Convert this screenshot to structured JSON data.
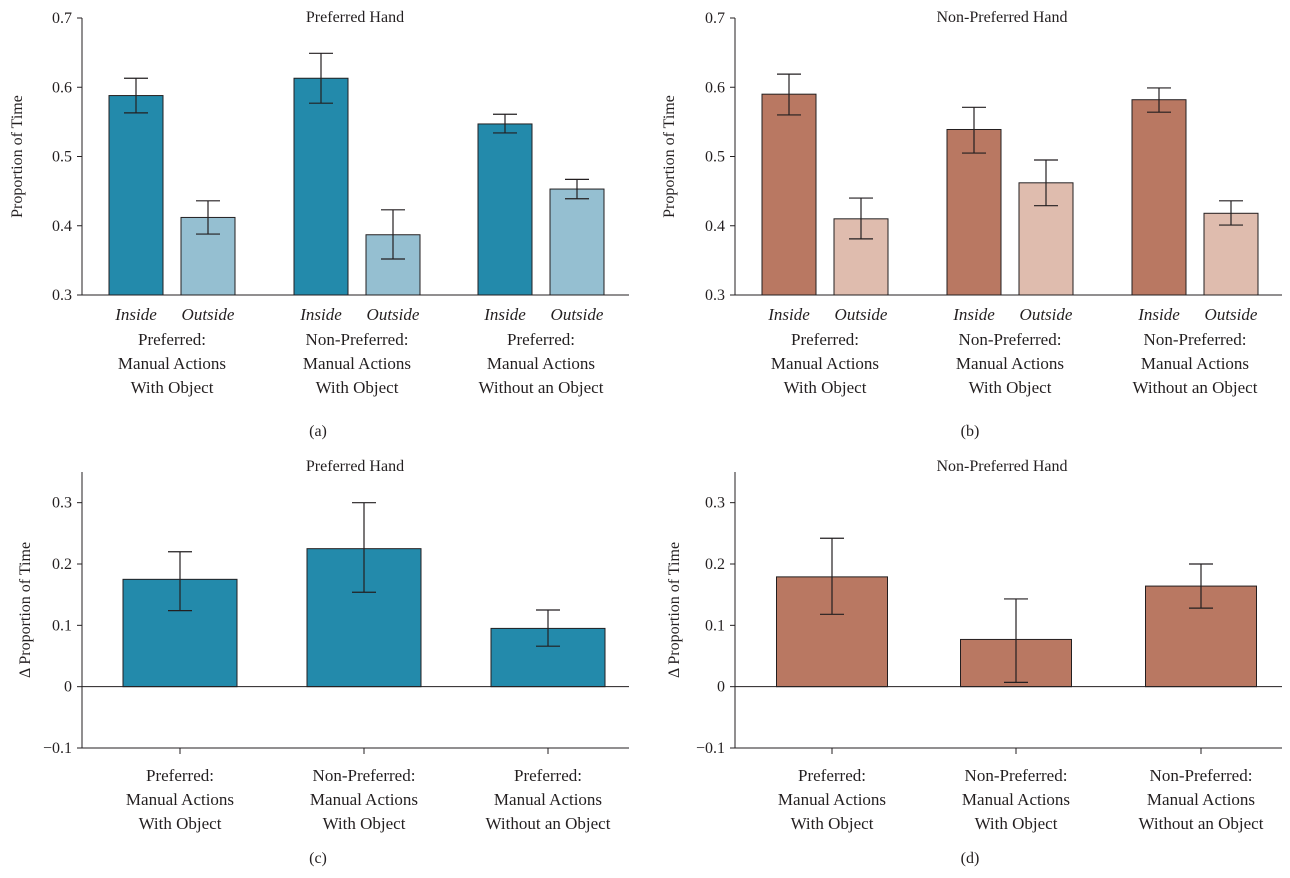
{
  "chart_data": [
    {
      "id": "a",
      "type": "bar",
      "panel_label": "(a)",
      "title": "Preferred Hand",
      "ylabel": "Proportion of Time",
      "ylim": [
        0.3,
        0.7
      ],
      "yticks": [
        0.3,
        0.4,
        0.5,
        0.6,
        0.7
      ],
      "ytick_labels": [
        "0.3",
        "0.4",
        "0.5",
        "0.6",
        "0.7"
      ],
      "bar_labels": [
        "Inside",
        "Outside"
      ],
      "colors": {
        "Inside": "#238aab",
        "Outside": "#95bfd1"
      },
      "groups": [
        {
          "label_lines": [
            "Preferred:",
            "Manual Actions",
            "With Object"
          ],
          "bars": [
            {
              "label": "Inside",
              "value": 0.588,
              "err_low": 0.563,
              "err_high": 0.613
            },
            {
              "label": "Outside",
              "value": 0.412,
              "err_low": 0.388,
              "err_high": 0.436
            }
          ]
        },
        {
          "label_lines": [
            "Non-Preferred:",
            "Manual Actions",
            "With Object"
          ],
          "bars": [
            {
              "label": "Inside",
              "value": 0.613,
              "err_low": 0.577,
              "err_high": 0.649
            },
            {
              "label": "Outside",
              "value": 0.387,
              "err_low": 0.352,
              "err_high": 0.423
            }
          ]
        },
        {
          "label_lines": [
            "Preferred:",
            "Manual Actions",
            "Without an Object"
          ],
          "bars": [
            {
              "label": "Inside",
              "value": 0.547,
              "err_low": 0.534,
              "err_high": 0.561
            },
            {
              "label": "Outside",
              "value": 0.453,
              "err_low": 0.439,
              "err_high": 0.467
            }
          ]
        }
      ]
    },
    {
      "id": "b",
      "type": "bar",
      "panel_label": "(b)",
      "title": "Non-Preferred Hand",
      "ylabel": "Proportion of Time",
      "ylim": [
        0.3,
        0.7
      ],
      "yticks": [
        0.3,
        0.4,
        0.5,
        0.6,
        0.7
      ],
      "ytick_labels": [
        "0.3",
        "0.4",
        "0.5",
        "0.6",
        "0.7"
      ],
      "bar_labels": [
        "Inside",
        "Outside"
      ],
      "colors": {
        "Inside": "#b97862",
        "Outside": "#dfbcae"
      },
      "groups": [
        {
          "label_lines": [
            "Preferred:",
            "Manual Actions",
            "With Object"
          ],
          "bars": [
            {
              "label": "Inside",
              "value": 0.59,
              "err_low": 0.56,
              "err_high": 0.619
            },
            {
              "label": "Outside",
              "value": 0.41,
              "err_low": 0.381,
              "err_high": 0.44
            }
          ]
        },
        {
          "label_lines": [
            "Non-Preferred:",
            "Manual Actions",
            "With Object"
          ],
          "bars": [
            {
              "label": "Inside",
              "value": 0.539,
              "err_low": 0.505,
              "err_high": 0.571
            },
            {
              "label": "Outside",
              "value": 0.462,
              "err_low": 0.429,
              "err_high": 0.495
            }
          ]
        },
        {
          "label_lines": [
            "Non-Preferred:",
            "Manual Actions",
            "Without an Object"
          ],
          "bars": [
            {
              "label": "Inside",
              "value": 0.582,
              "err_low": 0.564,
              "err_high": 0.599
            },
            {
              "label": "Outside",
              "value": 0.418,
              "err_low": 0.401,
              "err_high": 0.436
            }
          ]
        }
      ]
    },
    {
      "id": "c",
      "type": "bar",
      "panel_label": "(c)",
      "title": "Preferred Hand",
      "ylabel": "Δ Proportion of Time",
      "ylim": [
        -0.1,
        0.35
      ],
      "yticks": [
        -0.1,
        0,
        0.1,
        0.2,
        0.3
      ],
      "ytick_labels": [
        "−0.1",
        "0",
        "0.1",
        "0.2",
        "0.3"
      ],
      "zero_line": true,
      "colors": {
        "bar": "#238aab"
      },
      "categories_lines": [
        [
          "Preferred:",
          "Manual Actions",
          "With Object"
        ],
        [
          "Non-Preferred:",
          "Manual Actions",
          "With Object"
        ],
        [
          "Preferred:",
          "Manual Actions",
          "Without an Object"
        ]
      ],
      "values": [
        0.175,
        0.225,
        0.095
      ],
      "err_low": [
        0.124,
        0.154,
        0.066
      ],
      "err_high": [
        0.22,
        0.3,
        0.125
      ]
    },
    {
      "id": "d",
      "type": "bar",
      "panel_label": "(d)",
      "title": "Non-Preferred Hand",
      "ylabel": "Δ Proportion of Time",
      "ylim": [
        -0.1,
        0.35
      ],
      "yticks": [
        -0.1,
        0,
        0.1,
        0.2,
        0.3
      ],
      "ytick_labels": [
        "−0.1",
        "0",
        "0.1",
        "0.2",
        "0.3"
      ],
      "zero_line": true,
      "colors": {
        "bar": "#b97862"
      },
      "categories_lines": [
        [
          "Preferred:",
          "Manual Actions",
          "With Object"
        ],
        [
          "Non-Preferred:",
          "Manual Actions",
          "With Object"
        ],
        [
          "Non-Preferred:",
          "Manual Actions",
          "Without an Object"
        ]
      ],
      "values": [
        0.179,
        0.077,
        0.164
      ],
      "err_low": [
        0.118,
        0.007,
        0.128
      ],
      "err_high": [
        0.242,
        0.143,
        0.2
      ]
    }
  ]
}
